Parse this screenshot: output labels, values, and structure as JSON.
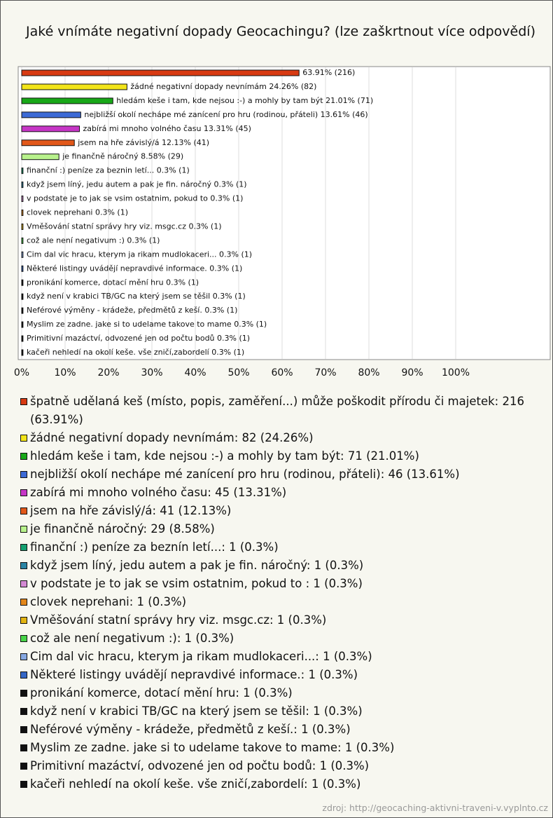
{
  "chart_data": {
    "type": "bar",
    "orientation": "horizontal",
    "title": "Jaké vnímáte negativní dopady Geocachingu? (lze zaškrtnout více odpovědí)",
    "values": [
      63.91,
      24.26,
      21.01,
      13.61,
      13.31,
      12.13,
      8.58,
      0.3,
      0.3,
      0.3,
      0.3,
      0.3,
      0.3,
      0.3,
      0.3,
      0.3,
      0.3,
      0.3,
      0.3,
      0.3,
      0.3
    ],
    "value_labels": [
      "63.91% (216)",
      "žádné negativní dopady nevnímám 24.26% (82)",
      "hledám keše i tam, kde nejsou :-) a mohly by tam být 21.01% (71)",
      "nejbližší okolí nechápe mé zanícení pro hru (rodinou, přáteli) 13.61% (46)",
      "zabírá mi mnoho volného času 13.31% (45)",
      "jsem na hře závislý/á 12.13% (41)",
      "je finančně náročný 8.58% (29)",
      "finanční :) peníze za beznin letí... 0.3% (1)",
      "když jsem líný, jedu autem a pak je fin. náročný 0.3% (1)",
      "v podstate je to jak se vsim ostatnim, pokud to  0.3% (1)",
      "clovek neprehani 0.3% (1)",
      "Vměšování statní správy hry viz. msgc.cz 0.3% (1)",
      "což ale není negativum :) 0.3% (1)",
      "Cim dal vic hracu, kterym ja rikam mudlokaceri... 0.3% (1)",
      "Některé listingy uvádějí nepravdivé informace. 0.3% (1)",
      "pronikání komerce, dotací mění hru 0.3% (1)",
      "když není v krabici TB/GC na který jsem se těšil 0.3% (1)",
      "Neférové výměny - krádeže, předmětů z keší. 0.3% (1)",
      "Myslim ze zadne. jake si to udelame takove to mame 0.3% (1)",
      "Primitivní mazáctví, odvozené jen od počtu bodů 0.3% (1)",
      "kačeři nehledí na okolí keše. vše zničí,zabordelí 0.3% (1)"
    ],
    "legend_labels": [
      "špatně udělaná keš (místo, popis, zaměření...) může poškodit přírodu či majetek: 216 (63.91%)",
      "žádné negativní dopady nevnímám: 82 (24.26%)",
      "hledám keše i tam, kde nejsou :-) a mohly by tam být: 71 (21.01%)",
      "nejbližší okolí nechápe mé zanícení pro hru (rodinou, přáteli): 46 (13.61%)",
      "zabírá mi mnoho volného času: 45 (13.31%)",
      "jsem na hře závislý/á: 41 (12.13%)",
      "je finančně náročný: 29 (8.58%)",
      "finanční :) peníze za beznín letí...: 1 (0.3%)",
      "když jsem líný, jedu autem a pak je fin. náročný: 1 (0.3%)",
      "v podstate je to jak se vsim ostatnim, pokud to : 1 (0.3%)",
      "clovek neprehani: 1 (0.3%)",
      "Vměšování statní správy hry viz. msgc.cz: 1 (0.3%)",
      "což ale není negativum :): 1 (0.3%)",
      "Cim dal vic hracu, kterym ja rikam mudlokaceri...: 1 (0.3%)",
      "Některé listingy uvádějí nepravdivé informace.: 1 (0.3%)",
      "pronikání komerce, dotací mění hru: 1 (0.3%)",
      "když není v krabici TB/GC na který jsem se těšil: 1 (0.3%)",
      "Neférové výměny - krádeže, předmětů z keší.: 1 (0.3%)",
      "Myslim ze zadne. jake si to udelame takove to mame: 1 (0.3%)",
      "Primitivní mazáctví, odvozené jen od počtu bodů: 1 (0.3%)",
      "kačeři nehledí na okolí keše. vše zničí,zabordelí: 1 (0.3%)"
    ],
    "colors": [
      "#d83a12",
      "#f2e41a",
      "#18a818",
      "#3c6ad6",
      "#c636c6",
      "#e2581a",
      "#b8f28c",
      "#14a070",
      "#2a84a4",
      "#d48ad4",
      "#e2861a",
      "#e2b412",
      "#48d448",
      "#86a8e2",
      "#3466c6",
      "#111111",
      "#111111",
      "#111111",
      "#111111",
      "#111111",
      "#111111"
    ],
    "xlim": [
      0,
      100
    ],
    "xticks": [
      {
        "value": 0,
        "label": "0%"
      },
      {
        "value": 10,
        "label": "10%"
      },
      {
        "value": 20,
        "label": "20%"
      },
      {
        "value": 30,
        "label": "30%"
      },
      {
        "value": 40,
        "label": "40%"
      },
      {
        "value": 50,
        "label": "50%"
      },
      {
        "value": 60,
        "label": "60%"
      },
      {
        "value": 70,
        "label": "70%"
      },
      {
        "value": 80,
        "label": "80%"
      },
      {
        "value": 90,
        "label": "90%"
      },
      {
        "value": 100,
        "label": "100%"
      }
    ],
    "grid": true,
    "source": "zdroj: http://geocaching-aktivni-traveni-v.vyplnto.cz"
  }
}
